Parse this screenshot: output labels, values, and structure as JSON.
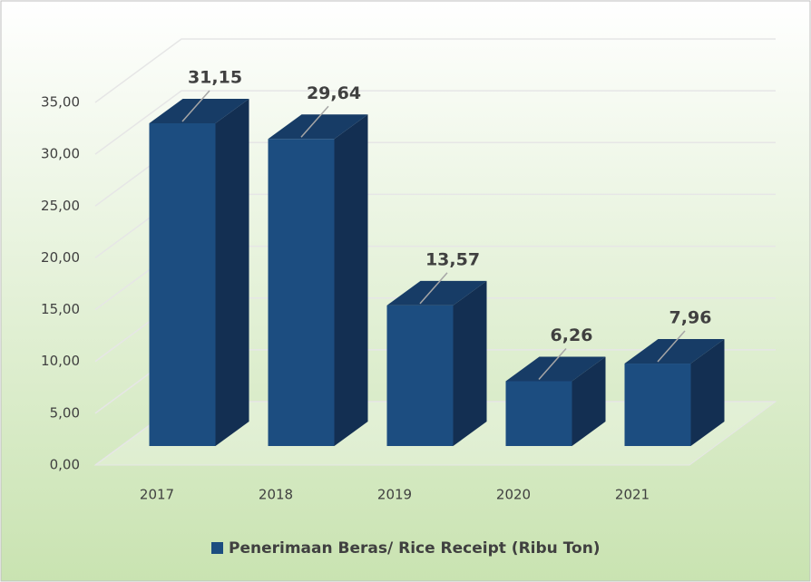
{
  "chart_data": {
    "type": "bar3d",
    "categories": [
      "2017",
      "2018",
      "2019",
      "2020",
      "2021"
    ],
    "series": [
      {
        "name": "Penerimaan Beras/ Rice Receipt (Ribu Ton)",
        "color": "#1c4d80",
        "values": [
          31.15,
          29.64,
          13.57,
          6.26,
          7.96
        ],
        "value_labels": [
          "31,15",
          "29,64",
          "13,57",
          "6,26",
          "7,96"
        ]
      }
    ],
    "ylim": [
      0,
      35
    ],
    "yticks": [
      {
        "value": 0,
        "label": "0,00"
      },
      {
        "value": 5,
        "label": "5,00"
      },
      {
        "value": 10,
        "label": "10,00"
      },
      {
        "value": 15,
        "label": "15,00"
      },
      {
        "value": 20,
        "label": "20,00"
      },
      {
        "value": 25,
        "label": "25,00"
      },
      {
        "value": 30,
        "label": "30,00"
      },
      {
        "value": 35,
        "label": "35,00"
      }
    ],
    "grid": true,
    "legend": "bottom"
  }
}
